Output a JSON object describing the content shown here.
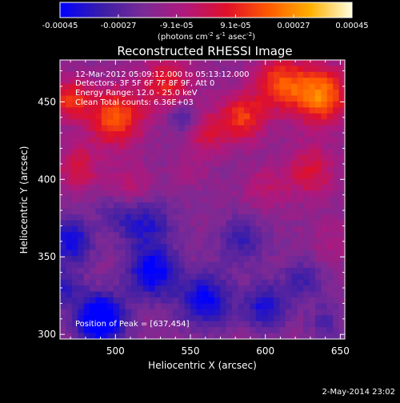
{
  "chart_data": {
    "type": "heatmap",
    "title": "Reconstructed RHESSI Image",
    "xlabel": "Heliocentric X (arcsec)",
    "ylabel": "Heliocentric Y (arcsec)",
    "xlim": [
      463,
      653
    ],
    "ylim": [
      297,
      477
    ],
    "x_ticks": [
      500,
      550,
      600,
      650
    ],
    "y_ticks": [
      300,
      350,
      400,
      450
    ],
    "colorbar": {
      "range": [
        -0.00045,
        0.00045
      ],
      "ticks": [
        "-0.00045",
        "-0.00027",
        "-9.1e-05",
        "9.1e-05",
        "0.00027",
        "0.00045"
      ],
      "tick_values": [
        -0.00045,
        -0.00027,
        -9.1e-05,
        9.1e-05,
        0.00027,
        0.00045
      ],
      "unit_main": "(photons cm",
      "unit_exp1": "-2",
      "unit_mid": " s",
      "unit_exp2": "-1",
      "unit_end": " asec",
      "unit_exp3": "-2",
      "unit_close": ")",
      "colormap_stops": [
        "#0000ff",
        "#3a1ea8",
        "#7a2a96",
        "#b0187c",
        "#e0102a",
        "#ff5a00",
        "#ffb000",
        "#ffffe0"
      ]
    },
    "annotations": [
      "12-Mar-2012 05:09:12.000 to 05:13:12.000",
      "Detectors: 3F 5F 6F 7F 8F 9F, Att 0",
      "Energy Range: 12.0 - 25.0 keV",
      "Clean     Total counts: 6.36E+03"
    ],
    "peak_label": "Position of Peak = [637,454]",
    "peak": [
      637,
      454
    ],
    "sources": [
      {
        "x": 637,
        "y": 454,
        "amp": 0.0004,
        "r": 13
      },
      {
        "x": 610,
        "y": 462,
        "amp": 0.0003,
        "r": 12
      },
      {
        "x": 500,
        "y": 440,
        "amp": 0.00035,
        "r": 13
      },
      {
        "x": 470,
        "y": 452,
        "amp": 0.00028,
        "r": 9
      },
      {
        "x": 585,
        "y": 440,
        "amp": 0.00028,
        "r": 11
      },
      {
        "x": 535,
        "y": 462,
        "amp": 0.00024,
        "r": 12
      },
      {
        "x": 560,
        "y": 430,
        "amp": 0.00018,
        "r": 10
      },
      {
        "x": 630,
        "y": 405,
        "amp": 0.0002,
        "r": 12
      },
      {
        "x": 475,
        "y": 408,
        "amp": 0.0002,
        "r": 10
      },
      {
        "x": 510,
        "y": 395,
        "amp": 0.00014,
        "r": 10
      },
      {
        "x": 600,
        "y": 395,
        "amp": 0.00012,
        "r": 10
      },
      {
        "x": 645,
        "y": 360,
        "amp": 8e-05,
        "r": 10
      },
      {
        "x": 550,
        "y": 405,
        "amp": 6e-05,
        "r": 8
      }
    ],
    "dips": [
      {
        "x": 490,
        "y": 310,
        "amp": -0.00042,
        "r": 11
      },
      {
        "x": 525,
        "y": 340,
        "amp": -0.0003,
        "r": 12
      },
      {
        "x": 470,
        "y": 360,
        "amp": -0.00026,
        "r": 10
      },
      {
        "x": 560,
        "y": 322,
        "amp": -0.00028,
        "r": 12
      },
      {
        "x": 600,
        "y": 318,
        "amp": -0.00024,
        "r": 10
      },
      {
        "x": 545,
        "y": 440,
        "amp": -0.00018,
        "r": 7
      },
      {
        "x": 520,
        "y": 372,
        "amp": -0.0002,
        "r": 12
      },
      {
        "x": 585,
        "y": 360,
        "amp": -0.00016,
        "r": 11
      },
      {
        "x": 625,
        "y": 335,
        "amp": -0.00014,
        "r": 10
      },
      {
        "x": 465,
        "y": 330,
        "amp": -0.00018,
        "r": 9
      },
      {
        "x": 500,
        "y": 378,
        "amp": -0.0001,
        "r": 9
      },
      {
        "x": 640,
        "y": 308,
        "amp": -0.00012,
        "r": 8
      }
    ],
    "baseline": -0.00016
  },
  "footer": {
    "timestamp": "2-May-2014 23:02"
  }
}
